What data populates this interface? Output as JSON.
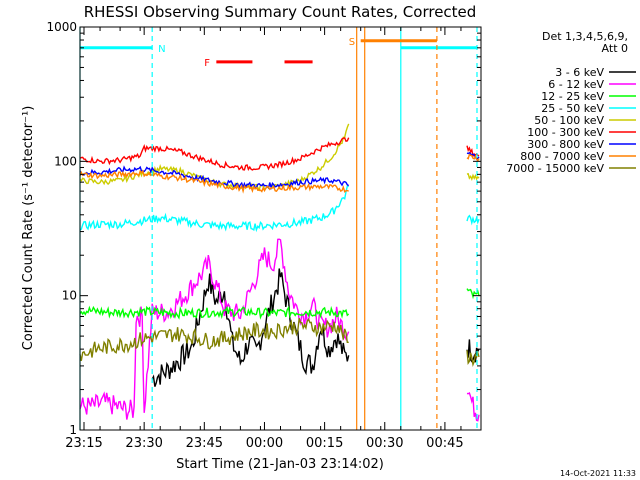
{
  "chart_data": {
    "type": "line",
    "title": "RHESSI Observing Summary Count Rates, Corrected",
    "xlabel": "Start Time (21-Jan-03 23:14:02)",
    "ylabel": "Corrected Count Rate (s⁻¹ detector⁻¹)",
    "y_scale": "log",
    "ylim": [
      1,
      1000
    ],
    "xlim_minutes": [
      0,
      100
    ],
    "x_ticks": [
      {
        "t": 1,
        "label": "23:15"
      },
      {
        "t": 16,
        "label": "23:30"
      },
      {
        "t": 31,
        "label": "23:45"
      },
      {
        "t": 46,
        "label": "00:00"
      },
      {
        "t": 61,
        "label": "00:15"
      },
      {
        "t": 76,
        "label": "00:30"
      },
      {
        "t": 91,
        "label": "00:45"
      }
    ],
    "y_ticks": [
      {
        "v": 1,
        "label": "1"
      },
      {
        "v": 10,
        "label": "10"
      },
      {
        "v": 100,
        "label": "100"
      },
      {
        "v": 1000,
        "label": "1000"
      }
    ],
    "legend_header": [
      "Det 1,3,4,5,6,9,",
      "Att 0"
    ],
    "legend_position": "right",
    "timestamp": "14-Oct-2021 11:33",
    "flag_labels": {
      "night": "N",
      "flare": "F",
      "saa": "S"
    },
    "series": [
      {
        "name": "3 - 6 keV",
        "color": "#000000",
        "segments": [
          {
            "x": [
              18,
              22,
              26,
              28,
              30,
              32,
              34,
              36,
              38,
              40,
              42,
              44,
              46,
              48,
              50,
              52,
              54,
              56,
              58,
              60,
              62,
              64,
              66,
              67
            ],
            "y": [
              2.4,
              2.8,
              3.6,
              4.2,
              7.5,
              13,
              9,
              11,
              4.4,
              3.2,
              4.5,
              3.8,
              6,
              9,
              14,
              8,
              5,
              3.3,
              3,
              6,
              4,
              5,
              3.5,
              3.6
            ]
          },
          {
            "x": [
              96.5,
              98,
              99.5
            ],
            "y": [
              4.2,
              3.8,
              4
            ]
          }
        ]
      },
      {
        "name": "6 - 12 keV",
        "color": "#ff00ff",
        "segments": [
          {
            "x": [
              0,
              3,
              6,
              9,
              12,
              13.5,
              14,
              15.5,
              16,
              18,
              20,
              22,
              26,
              30,
              32,
              34,
              36,
              38,
              40,
              42,
              44,
              46,
              48,
              50,
              52,
              54,
              56,
              58,
              60,
              62,
              64,
              66,
              67
            ],
            "y": [
              1.5,
              1.5,
              1.6,
              1.5,
              1.4,
              1.4,
              7,
              7,
              1.4,
              7.5,
              7.5,
              7.6,
              10,
              14,
              17,
              12,
              8,
              7.5,
              7.2,
              10,
              14,
              20,
              17,
              25,
              11,
              8,
              7,
              8.5,
              6,
              5.8,
              7,
              5.5,
              5.4
            ]
          },
          {
            "x": [
              96.5,
              98,
              99.5
            ],
            "y": [
              2.2,
              1.5,
              1.3
            ]
          }
        ]
      },
      {
        "name": "12 - 25 keV",
        "color": "#00ff00",
        "segments": [
          {
            "x": [
              0,
              8,
              16,
              24,
              32,
              40,
              48,
              56,
              64,
              67
            ],
            "y": [
              7.8,
              7.5,
              7.6,
              7.4,
              7.5,
              7.6,
              7.4,
              7.6,
              7.5,
              7.3
            ]
          },
          {
            "x": [
              96.5,
              98,
              99.5
            ],
            "y": [
              11,
              10,
              10
            ]
          }
        ]
      },
      {
        "name": "25 - 50 keV",
        "color": "#00ffff",
        "segments": [
          {
            "x": [
              0,
              5,
              10,
              15,
              20,
              25,
              30,
              35,
              40,
              45,
              50,
              55,
              60,
              63,
              66,
              67
            ],
            "y": [
              33,
              34,
              34,
              36,
              38,
              36,
              34,
              33,
              33,
              33,
              34,
              35,
              38,
              42,
              55,
              65
            ]
          },
          {
            "x": [
              96.5,
              98,
              99.5
            ],
            "y": [
              38,
              37,
              37
            ]
          }
        ]
      },
      {
        "name": "50 - 100 keV",
        "color": "#cccc00",
        "segments": [
          {
            "x": [
              0,
              5,
              10,
              15,
              20,
              25,
              30,
              35,
              40,
              45,
              50,
              55,
              60,
              63,
              66,
              67
            ],
            "y": [
              72,
              70,
              72,
              80,
              88,
              85,
              75,
              68,
              65,
              64,
              66,
              72,
              90,
              110,
              150,
              190
            ]
          },
          {
            "x": [
              96.5,
              98,
              99.5
            ],
            "y": [
              78,
              75,
              75
            ]
          }
        ]
      },
      {
        "name": "100 - 300 keV",
        "color": "#ff0000",
        "segments": [
          {
            "x": [
              0,
              5,
              10,
              15,
              16,
              20,
              25,
              30,
              35,
              40,
              45,
              50,
              55,
              60,
              63,
              66,
              67
            ],
            "y": [
              105,
              100,
              102,
              110,
              125,
              125,
              118,
              105,
              95,
              90,
              90,
              95,
              105,
              125,
              135,
              145,
              150
            ]
          },
          {
            "x": [
              96.5,
              98,
              99.5
            ],
            "y": [
              125,
              115,
              110
            ]
          }
        ]
      },
      {
        "name": "300 - 800 keV",
        "color": "#0000ff",
        "segments": [
          {
            "x": [
              0,
              5,
              10,
              15,
              20,
              25,
              30,
              35,
              40,
              45,
              50,
              55,
              60,
              63,
              66,
              67
            ],
            "y": [
              82,
              83,
              86,
              88,
              84,
              80,
              74,
              70,
              67,
              66,
              67,
              70,
              72,
              72,
              68,
              66
            ]
          },
          {
            "x": [
              96.5,
              98,
              99.5
            ],
            "y": [
              115,
              110,
              108
            ]
          }
        ]
      },
      {
        "name": "800 - 7000 keV",
        "color": "#ff8000",
        "segments": [
          {
            "x": [
              0,
              5,
              10,
              15,
              20,
              25,
              30,
              35,
              40,
              45,
              50,
              55,
              60,
              63,
              66,
              67
            ],
            "y": [
              80,
              78,
              80,
              82,
              78,
              75,
              70,
              66,
              63,
              62,
              63,
              64,
              65,
              64,
              62,
              60
            ]
          },
          {
            "x": [
              96.5,
              98,
              99.5
            ],
            "y": [
              110,
              108,
              105
            ]
          }
        ]
      },
      {
        "name": "7000 - 15000 keV",
        "color": "#808000",
        "segments": [
          {
            "x": [
              0,
              4,
              8,
              12,
              16,
              20,
              24,
              28,
              32,
              36,
              40,
              44,
              48,
              52,
              56,
              60,
              64,
              67
            ],
            "y": [
              3.6,
              4,
              4.2,
              4.4,
              4.8,
              5,
              5.2,
              5,
              4.6,
              4.8,
              5.2,
              5.5,
              5.4,
              5.8,
              6,
              5.8,
              6,
              4.5
            ]
          },
          {
            "x": [
              96.5,
              98,
              99.5
            ],
            "y": [
              3.6,
              3.4,
              3.5
            ]
          }
        ]
      }
    ],
    "flags": {
      "night": {
        "color": "#00ffff",
        "level": 700,
        "intervals": [
          [
            0,
            18
          ],
          [
            80,
            99
          ]
        ],
        "boundaries": [
          0,
          18,
          80,
          99
        ]
      },
      "flare": {
        "color": "#ff0000",
        "level": 550,
        "intervals": [
          [
            34,
            43
          ],
          [
            51,
            58
          ]
        ],
        "marker_at": 31
      },
      "saa": {
        "color": "#ff8000",
        "level": 790,
        "intervals": [
          [
            70,
            89
          ]
        ],
        "boundaries": [
          69,
          71,
          89
        ]
      }
    }
  }
}
